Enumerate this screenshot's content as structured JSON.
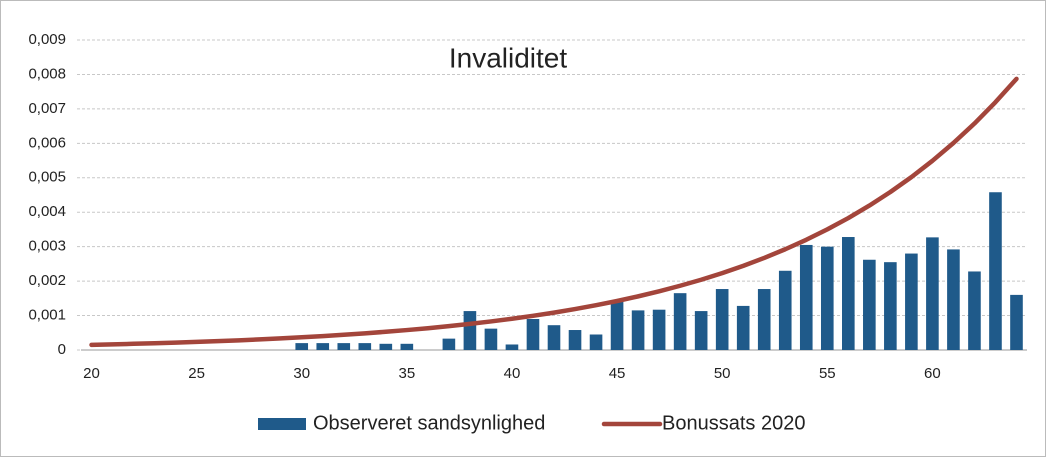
{
  "chart_data": {
    "type": "bar",
    "title": "Invaliditet",
    "x": [
      20,
      21,
      22,
      23,
      24,
      25,
      26,
      27,
      28,
      29,
      30,
      31,
      32,
      33,
      34,
      35,
      36,
      37,
      38,
      39,
      40,
      41,
      42,
      43,
      44,
      45,
      46,
      47,
      48,
      49,
      50,
      51,
      52,
      53,
      54,
      55,
      56,
      57,
      58,
      59,
      60,
      61,
      62,
      63,
      64
    ],
    "xlim": [
      19.5,
      64.5
    ],
    "xticks": [
      20,
      25,
      30,
      35,
      40,
      45,
      50,
      55,
      60
    ],
    "ylim": [
      0,
      0.009
    ],
    "yticks": [
      0,
      {
        "value": 0.001,
        "label": "0,001"
      },
      {
        "value": 0.002,
        "label": "0,002"
      },
      {
        "value": 0.003,
        "label": "0,003"
      },
      {
        "value": 0.004,
        "label": "0,004"
      },
      {
        "value": 0.005,
        "label": "0,005"
      },
      {
        "value": 0.006,
        "label": "0,006"
      },
      {
        "value": 0.007,
        "label": "0,007"
      },
      {
        "value": 0.008,
        "label": "0,008"
      },
      {
        "value": 0.009,
        "label": "0,009"
      }
    ],
    "grid": true,
    "legend": "bottom",
    "series": [
      {
        "name": "Observeret sandsynlighed",
        "type": "bar",
        "color": "#1f5a8a",
        "values": [
          0,
          0,
          0,
          0,
          0,
          0,
          0,
          0,
          0,
          0,
          0.0002,
          0.0002,
          0.0002,
          0.0002,
          0.00018,
          0.00018,
          0,
          0.00033,
          0.00113,
          0.00062,
          0.00016,
          0.0009,
          0.00072,
          0.00058,
          0.00045,
          0.0014,
          0.00115,
          0.00117,
          0.00165,
          0.00113,
          0.00177,
          0.00128,
          0.00177,
          0.0023,
          0.00305,
          0.003,
          0.00328,
          0.00262,
          0.00255,
          0.0028,
          0.00327,
          0.00292,
          0.00228,
          0.00458,
          0.0016
        ]
      },
      {
        "name": "Bonussats 2020",
        "type": "line",
        "color": "#a3453b",
        "values": [
          0.00015,
          0.000164,
          0.00018,
          0.000196,
          0.000215,
          0.000235,
          0.000257,
          0.000281,
          0.000308,
          0.000337,
          0.000369,
          0.000404,
          0.000442,
          0.000483,
          0.000529,
          0.000579,
          0.000633,
          0.000693,
          0.000758,
          0.000829,
          0.000907,
          0.000993,
          0.001086,
          0.001189,
          0.001301,
          0.001423,
          0.001557,
          0.001704,
          0.001865,
          0.00204,
          0.002232,
          0.002443,
          0.002673,
          0.002925,
          0.0032,
          0.003501,
          0.003831,
          0.004192,
          0.004587,
          0.005019,
          0.005492,
          0.006009,
          0.006575,
          0.007195,
          0.007873
        ]
      }
    ]
  }
}
